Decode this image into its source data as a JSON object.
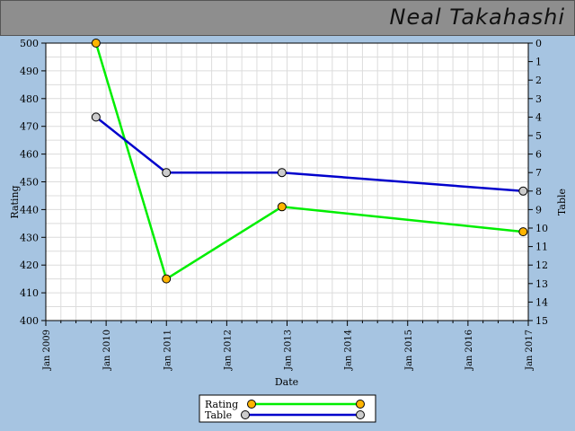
{
  "header": {
    "player_name": "Neal Takahashi"
  },
  "chart_data": {
    "type": "line",
    "title": "",
    "xlabel": "Date",
    "ylabel": "Rating",
    "y2label": "Table",
    "x_range": [
      "2009-01-01",
      "2017-01-01"
    ],
    "x_ticks": [
      "Jan 2009",
      "Jan 2010",
      "Jan 2011",
      "Jan 2012",
      "Jan 2013",
      "Jan 2014",
      "Jan 2015",
      "Jan 2016",
      "Jan 2017"
    ],
    "ylim": [
      400,
      500
    ],
    "y_ticks": [
      400,
      410,
      420,
      430,
      440,
      450,
      460,
      470,
      480,
      490,
      500
    ],
    "y2lim": [
      0,
      15
    ],
    "y2_inverted": true,
    "y2_ticks": [
      0,
      1,
      2,
      3,
      4,
      5,
      6,
      7,
      8,
      9,
      10,
      11,
      12,
      13,
      14,
      15
    ],
    "grid": true,
    "legend_position": "bottom-center",
    "series": [
      {
        "name": "Rating",
        "axis": "left",
        "color": "#00ee00",
        "marker_color": "#ffb400",
        "x": [
          "2009-11-01",
          "2011-01-01",
          "2012-12-01",
          "2016-12-01"
        ],
        "values": [
          500,
          415,
          441,
          432
        ]
      },
      {
        "name": "Table",
        "axis": "right",
        "color": "#0000cc",
        "marker_color": "#cccccc",
        "x": [
          "2009-11-01",
          "2011-01-01",
          "2012-12-01",
          "2016-12-01"
        ],
        "values": [
          4,
          7,
          7,
          8
        ]
      }
    ]
  }
}
